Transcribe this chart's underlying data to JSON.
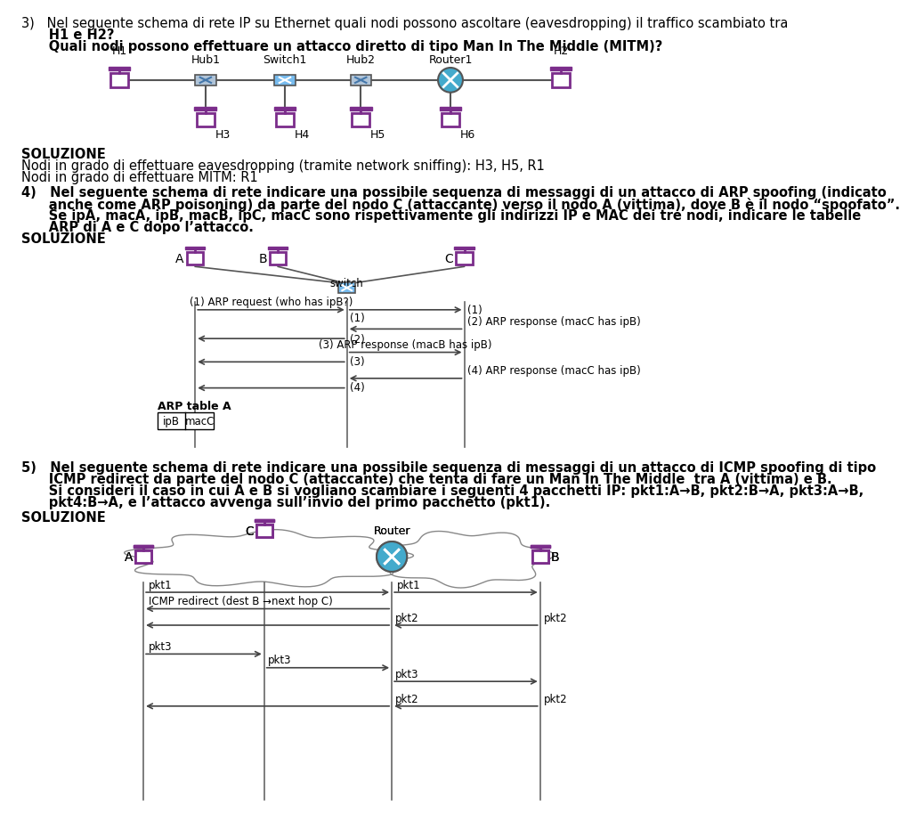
{
  "bg_color": "#ffffff",
  "purple": "#7B2D8B",
  "hub_color": "#aabbcc",
  "hub_line": "#336699",
  "switch_color": "#66aadd",
  "router_color": "#44aacc",
  "seq_line_color": "#666666",
  "arrow_color": "#444444",
  "s3_q1": "3)   Nel seguente schema di rete IP su Ethernet quali nodi possono ascoltare (eavesdropping) il traffico scambiato tra",
  "s3_q2": "      H1 e H2?",
  "s3_q3": "      Quali nodi possono effettuare un attacco diretto di tipo Man In The Middle (MITM)?",
  "s3_sol": "SOLUZIONE",
  "s3_s1": "Nodi in grado di effettuare eavesdropping (tramite network sniffing): H3, H5, R1",
  "s3_s2": "Nodi in grado di effettuare MITM: R1",
  "s4_q1": "4)   Nel seguente schema di rete indicare una possibile sequenza di messaggi di un attacco di ARP spoofing (indicato",
  "s4_q2": "      anche come ARP poisoning) da parte del nodo C (attaccante) verso il nodo A (vittima), dove B è il nodo “spoofato”.",
  "s4_q3": "      Se ipA, macA, ipB, macB, ipC, macC sono rispettivamente gli indirizzi IP e MAC dei tre nodi, indicare le tabelle",
  "s4_q4": "      ARP di A e C dopo l’attacco.",
  "s4_sol": "SOLUZIONE",
  "s5_q1": "5)   Nel seguente schema di rete indicare una possibile sequenza di messaggi di un attacco di ICMP spoofing di tipo",
  "s5_q2": "      ICMP redirect da parte del nodo C (attaccante) che tenta di fare un Man In The Middle  tra A (vittima) e B.",
  "s5_q3": "      Si consideri il caso in cui A e B si vogliano scambiare i seguenti 4 pacchetti IP: pkt1:A→B, pkt2:B→A, pkt3:A→B,",
  "s5_q4": "      pkt4:B→A, e l’attacco avvenga sull’invio del primo pacchetto (pkt1).",
  "s5_sol": "SOLUZIONE"
}
